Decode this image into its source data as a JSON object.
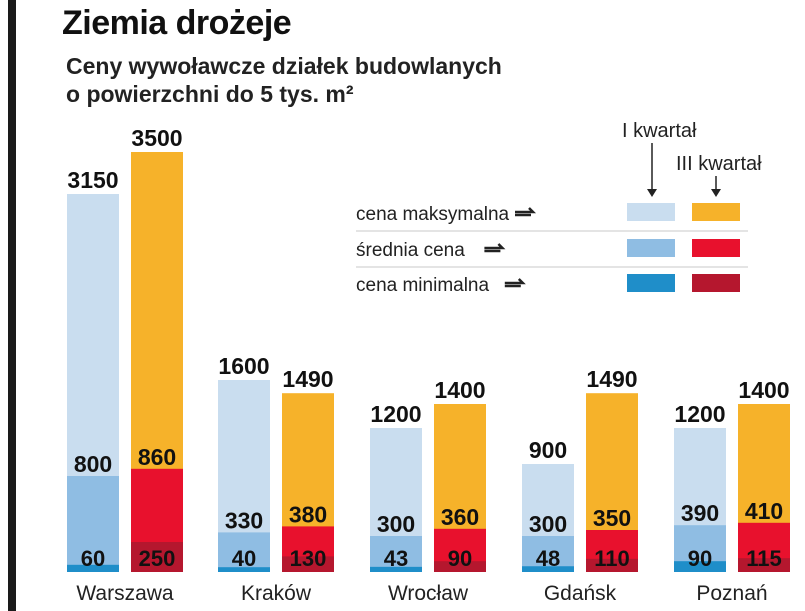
{
  "title": "Ziemia drożeje",
  "subtitle": "Ceny wywoławcze działek budowlanych\no powierzchni do 5 tys. m²",
  "legend": {
    "col1": "I kwartał",
    "col2": "III kwartał",
    "rows": [
      "cena maksymalna",
      "średnia cena",
      "cena minimalna"
    ]
  },
  "colors": {
    "q1_max": "#c9ddef",
    "q1_avg": "#8fbde3",
    "q1_min": "#1f8ec9",
    "q3_max": "#f6b22a",
    "q3_avg": "#e8112d",
    "q3_min": "#b5172e"
  },
  "chart_data": {
    "type": "bar",
    "title": "Ziemia drożeje",
    "subtitle": "Ceny wywoławcze działek budowlanych o powierzchni do 5 tys. m²",
    "categories": [
      "Warszawa",
      "Kraków",
      "Wrocław",
      "Gdańsk",
      "Poznań"
    ],
    "series": [
      {
        "name": "I kwartał",
        "max": [
          3150,
          1600,
          1200,
          900,
          1200
        ],
        "avg": [
          800,
          330,
          300,
          300,
          390
        ],
        "min": [
          60,
          40,
          43,
          48,
          90
        ]
      },
      {
        "name": "III kwartał",
        "max": [
          3500,
          1490,
          1400,
          1490,
          1400
        ],
        "avg": [
          860,
          380,
          360,
          350,
          410
        ],
        "min": [
          250,
          130,
          90,
          110,
          115
        ]
      }
    ]
  }
}
